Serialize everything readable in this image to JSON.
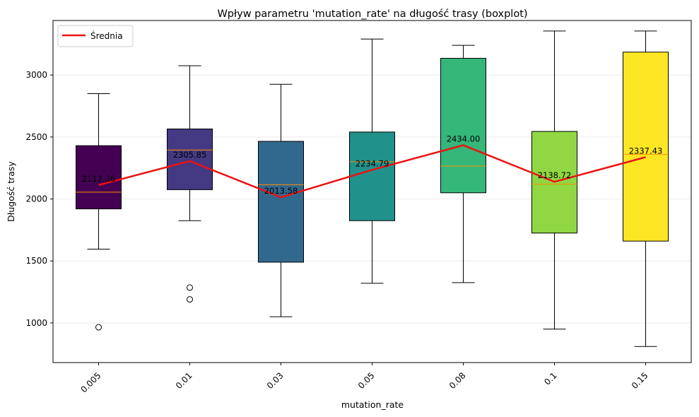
{
  "chart_data": {
    "type": "boxplot",
    "title": "Wpływ parametru 'mutation_rate' na długość trasy (boxplot)",
    "xlabel": "mutation_rate",
    "ylabel": "Długość trasy",
    "categories": [
      "0.005",
      "0.01",
      "0.03",
      "0.05",
      "0.08",
      "0.1",
      "0.15"
    ],
    "boxes": [
      {
        "whisker_low": 1595,
        "q1": 1920,
        "median": 2055,
        "q3": 2430,
        "whisker_high": 2850,
        "outliers": [
          965
        ]
      },
      {
        "whisker_low": 1825,
        "q1": 2075,
        "median": 2395,
        "q3": 2565,
        "whisker_high": 3075,
        "outliers": [
          1285,
          1190
        ]
      },
      {
        "whisker_low": 1050,
        "q1": 1490,
        "median": 2115,
        "q3": 2465,
        "whisker_high": 2925,
        "outliers": []
      },
      {
        "whisker_low": 1320,
        "q1": 1825,
        "median": 2300,
        "q3": 2540,
        "whisker_high": 3290,
        "outliers": []
      },
      {
        "whisker_low": 1325,
        "q1": 2050,
        "median": 2265,
        "q3": 3135,
        "whisker_high": 3240,
        "outliers": []
      },
      {
        "whisker_low": 950,
        "q1": 1725,
        "median": 2120,
        "q3": 2545,
        "whisker_high": 3355,
        "outliers": []
      },
      {
        "whisker_low": 810,
        "q1": 1660,
        "median": 2360,
        "q3": 3185,
        "whisker_high": 3355,
        "outliers": []
      }
    ],
    "box_colors": [
      "#440154",
      "#443983",
      "#31688e",
      "#21918c",
      "#35b779",
      "#90d743",
      "#fde725"
    ],
    "median_color": "#ff8c00",
    "series": [
      {
        "name": "Średnia",
        "color": "#ee1111",
        "values": [
          2112.26,
          2305.85,
          2013.58,
          2234.79,
          2434.0,
          2138.72,
          2337.43
        ]
      }
    ],
    "data_labels": [
      "2112.26",
      "2305.85",
      "2013.58",
      "2234.79",
      "2434.00",
      "2138.72",
      "2337.43"
    ],
    "yticks": [
      1000,
      1500,
      2000,
      2500,
      3000
    ],
    "ylim": [
      680,
      3440
    ],
    "grid": "horizontal",
    "legend": "top-left"
  }
}
